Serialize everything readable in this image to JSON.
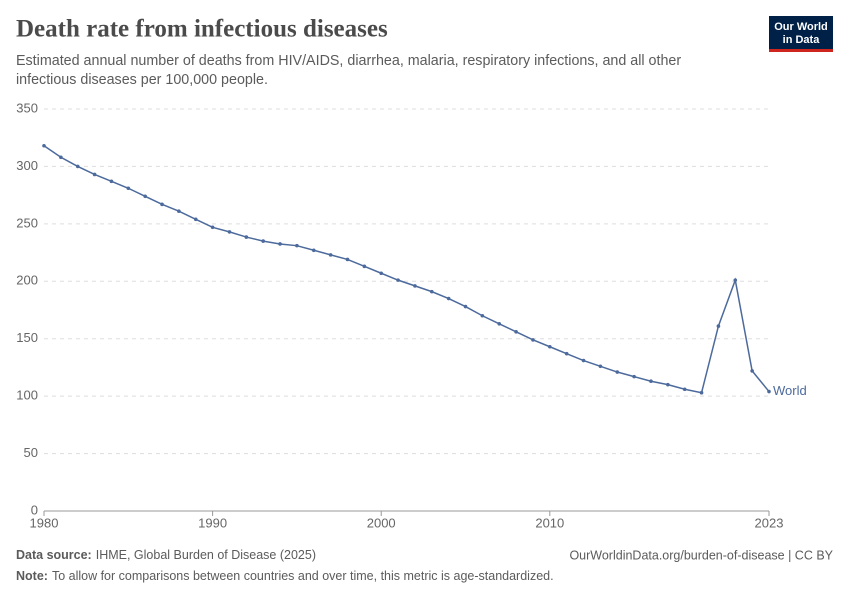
{
  "chart_data": {
    "type": "line",
    "title": "Death rate from infectious diseases",
    "subtitle": "Estimated annual number of deaths from HIV/AIDS, diarrhea, malaria, respiratory infections, and all other infectious diseases per 100,000 people.",
    "x": [
      1980,
      1981,
      1982,
      1983,
      1984,
      1985,
      1986,
      1987,
      1988,
      1989,
      1990,
      1991,
      1992,
      1993,
      1994,
      1995,
      1996,
      1997,
      1998,
      1999,
      2000,
      2001,
      2002,
      2003,
      2004,
      2005,
      2006,
      2007,
      2008,
      2009,
      2010,
      2011,
      2012,
      2013,
      2014,
      2015,
      2016,
      2017,
      2018,
      2019,
      2020,
      2021,
      2022,
      2023
    ],
    "series": [
      {
        "name": "World",
        "color": "#4c6a9c",
        "values": [
          318,
          308,
          300,
          293,
          287,
          281,
          274,
          267,
          261,
          254,
          247,
          243,
          238.5,
          235,
          232.5,
          231,
          227,
          223,
          219,
          213,
          207,
          201,
          196,
          191,
          185,
          178,
          170,
          163,
          156,
          149,
          143,
          137,
          131,
          126,
          121,
          117,
          113,
          110,
          106,
          103,
          161,
          201,
          122,
          104
        ]
      }
    ],
    "xlim": [
      1980,
      2023
    ],
    "xticks": [
      1980,
      1990,
      2000,
      2010,
      2023
    ],
    "ylim": [
      0,
      350
    ],
    "yticks": [
      0,
      50,
      100,
      150,
      200,
      250,
      300,
      350
    ],
    "grid": true
  },
  "logo": [
    "Our World",
    "in Data"
  ],
  "footer": {
    "source_label": "Data source:",
    "source": "IHME, Global Burden of Disease (2025)",
    "url": "OurWorldinData.org/burden-of-disease | CC BY",
    "note_label": "Note:",
    "note": "To allow for comparisons between countries and over time, this metric is age-standardized."
  }
}
